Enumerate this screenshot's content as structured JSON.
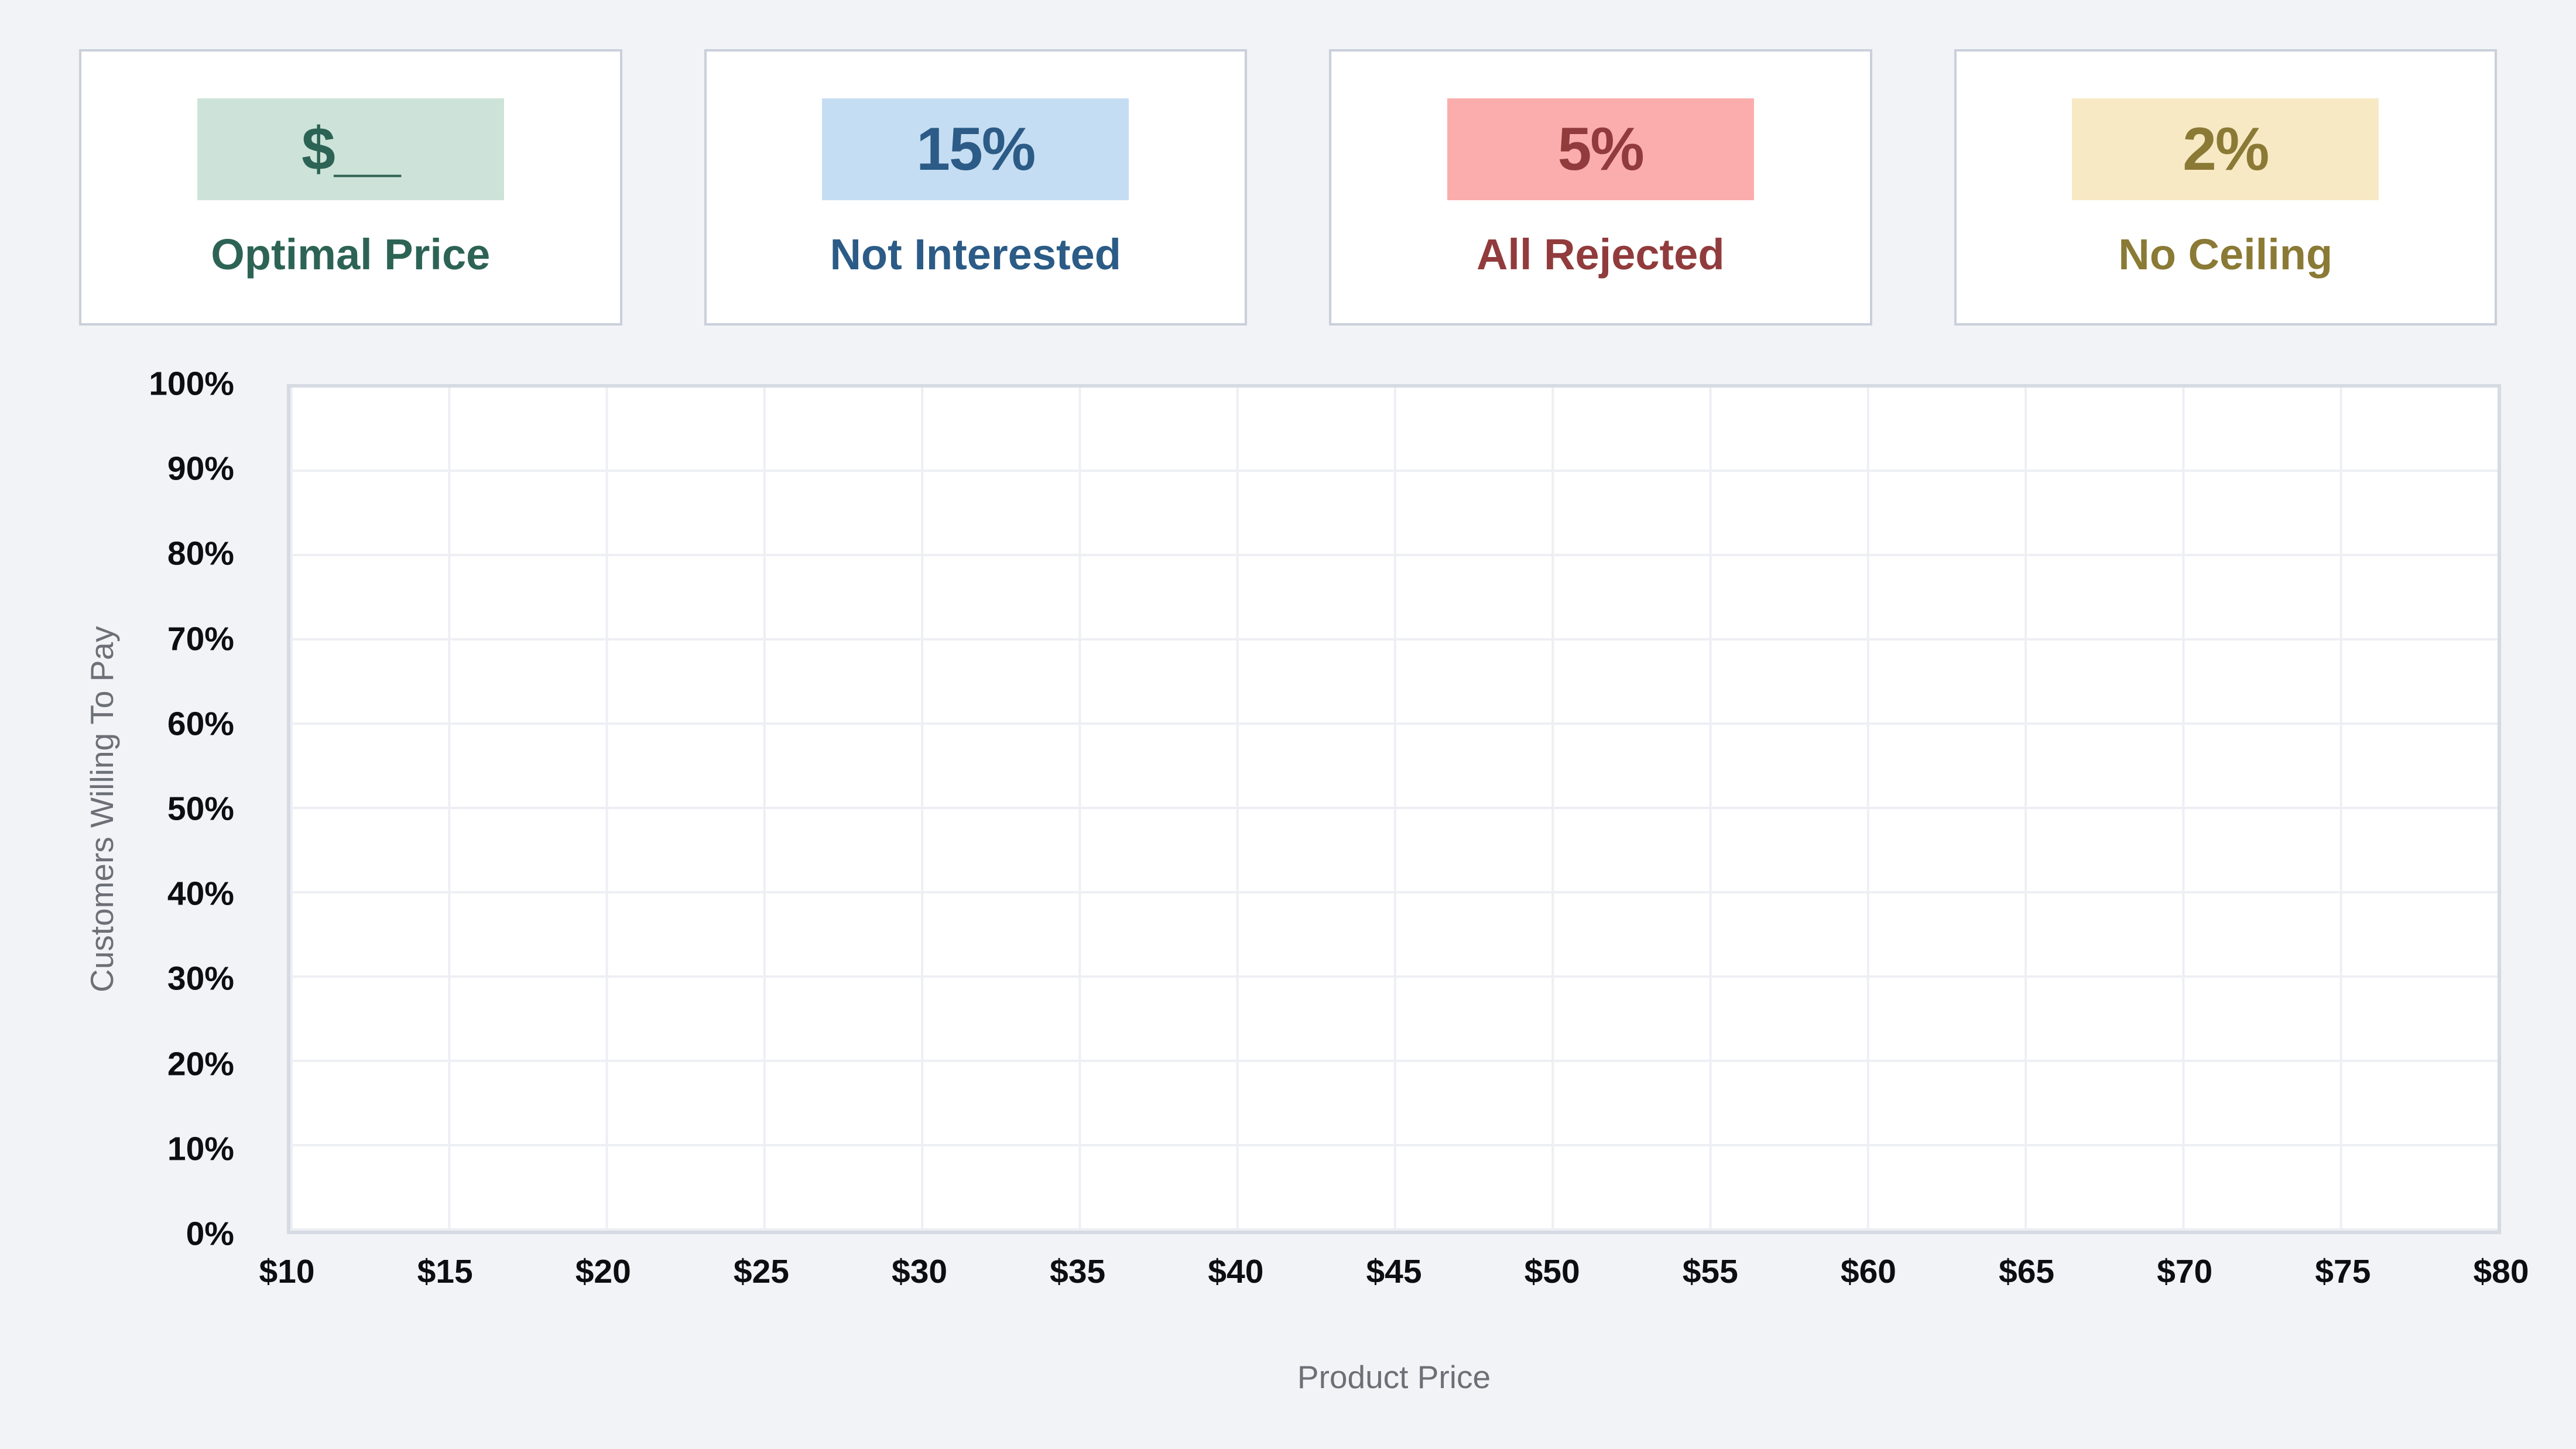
{
  "cards": [
    {
      "value": "$__",
      "label": "Optimal Price",
      "box_color": "#cde3d9",
      "text_color": "#2d6355"
    },
    {
      "value": "15%",
      "label": "Not Interested",
      "box_color": "#c5ddf2",
      "text_color": "#2b5b86"
    },
    {
      "value": "5%",
      "label": "All Rejected",
      "box_color": "#fbadad",
      "text_color": "#913b3c"
    },
    {
      "value": "2%",
      "label": "No Ceiling",
      "box_color": "#f8e9c5",
      "text_color": "#8a7a35"
    }
  ],
  "chart_data": {
    "type": "line",
    "title": "",
    "xlabel": "Product Price",
    "ylabel": "Customers Willing To Pay",
    "x_ticks": [
      "$10",
      "$15",
      "$20",
      "$25",
      "$30",
      "$35",
      "$40",
      "$45",
      "$50",
      "$55",
      "$60",
      "$65",
      "$70",
      "$75",
      "$80"
    ],
    "y_ticks": [
      "0%",
      "10%",
      "20%",
      "30%",
      "40%",
      "50%",
      "60%",
      "70%",
      "80%",
      "90%",
      "100%"
    ],
    "xlim": [
      10,
      80
    ],
    "ylim": [
      0,
      100
    ],
    "grid": true,
    "legend": "none",
    "series": []
  },
  "colors": {
    "page_background": "#f1f3f6",
    "card_border": "#c9d0da",
    "plot_border": "#d6dbe3",
    "gridline": "#edeff4",
    "tick_label": "#0d0e10",
    "axis_title": "#6c7076"
  }
}
